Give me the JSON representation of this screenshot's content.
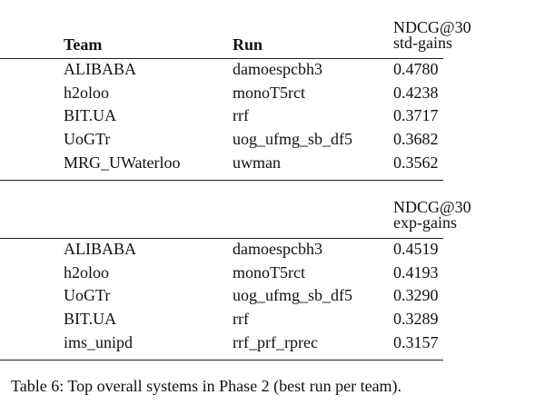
{
  "tables": [
    {
      "header": {
        "team": "Team",
        "run": "Run",
        "metric": [
          "NDCG@30",
          "std-gains"
        ]
      },
      "rows": [
        [
          "ALIBABA",
          "damoespcbh3",
          "0.4780"
        ],
        [
          "h2oloo",
          "monoT5rct",
          "0.4238"
        ],
        [
          "BIT.UA",
          "rrf",
          "0.3717"
        ],
        [
          "UoGTr",
          "uog_ufmg_sb_df5",
          "0.3682"
        ],
        [
          "MRG_UWaterloo",
          "uwman",
          "0.3562"
        ]
      ]
    },
    {
      "header": {
        "metric": [
          "NDCG@30",
          "exp-gains"
        ]
      },
      "rows": [
        [
          "ALIBABA",
          "damoespcbh3",
          "0.4519"
        ],
        [
          "h2oloo",
          "monoT5rct",
          "0.4193"
        ],
        [
          "UoGTr",
          "uog_ufmg_sb_df5",
          "0.3290"
        ],
        [
          "BIT.UA",
          "rrf",
          "0.3289"
        ],
        [
          "ims_unipd",
          "rrf_prf_rprec",
          "0.3157"
        ]
      ]
    }
  ],
  "caption": "Table 6: Top overall systems in Phase 2 (best run per team)."
}
